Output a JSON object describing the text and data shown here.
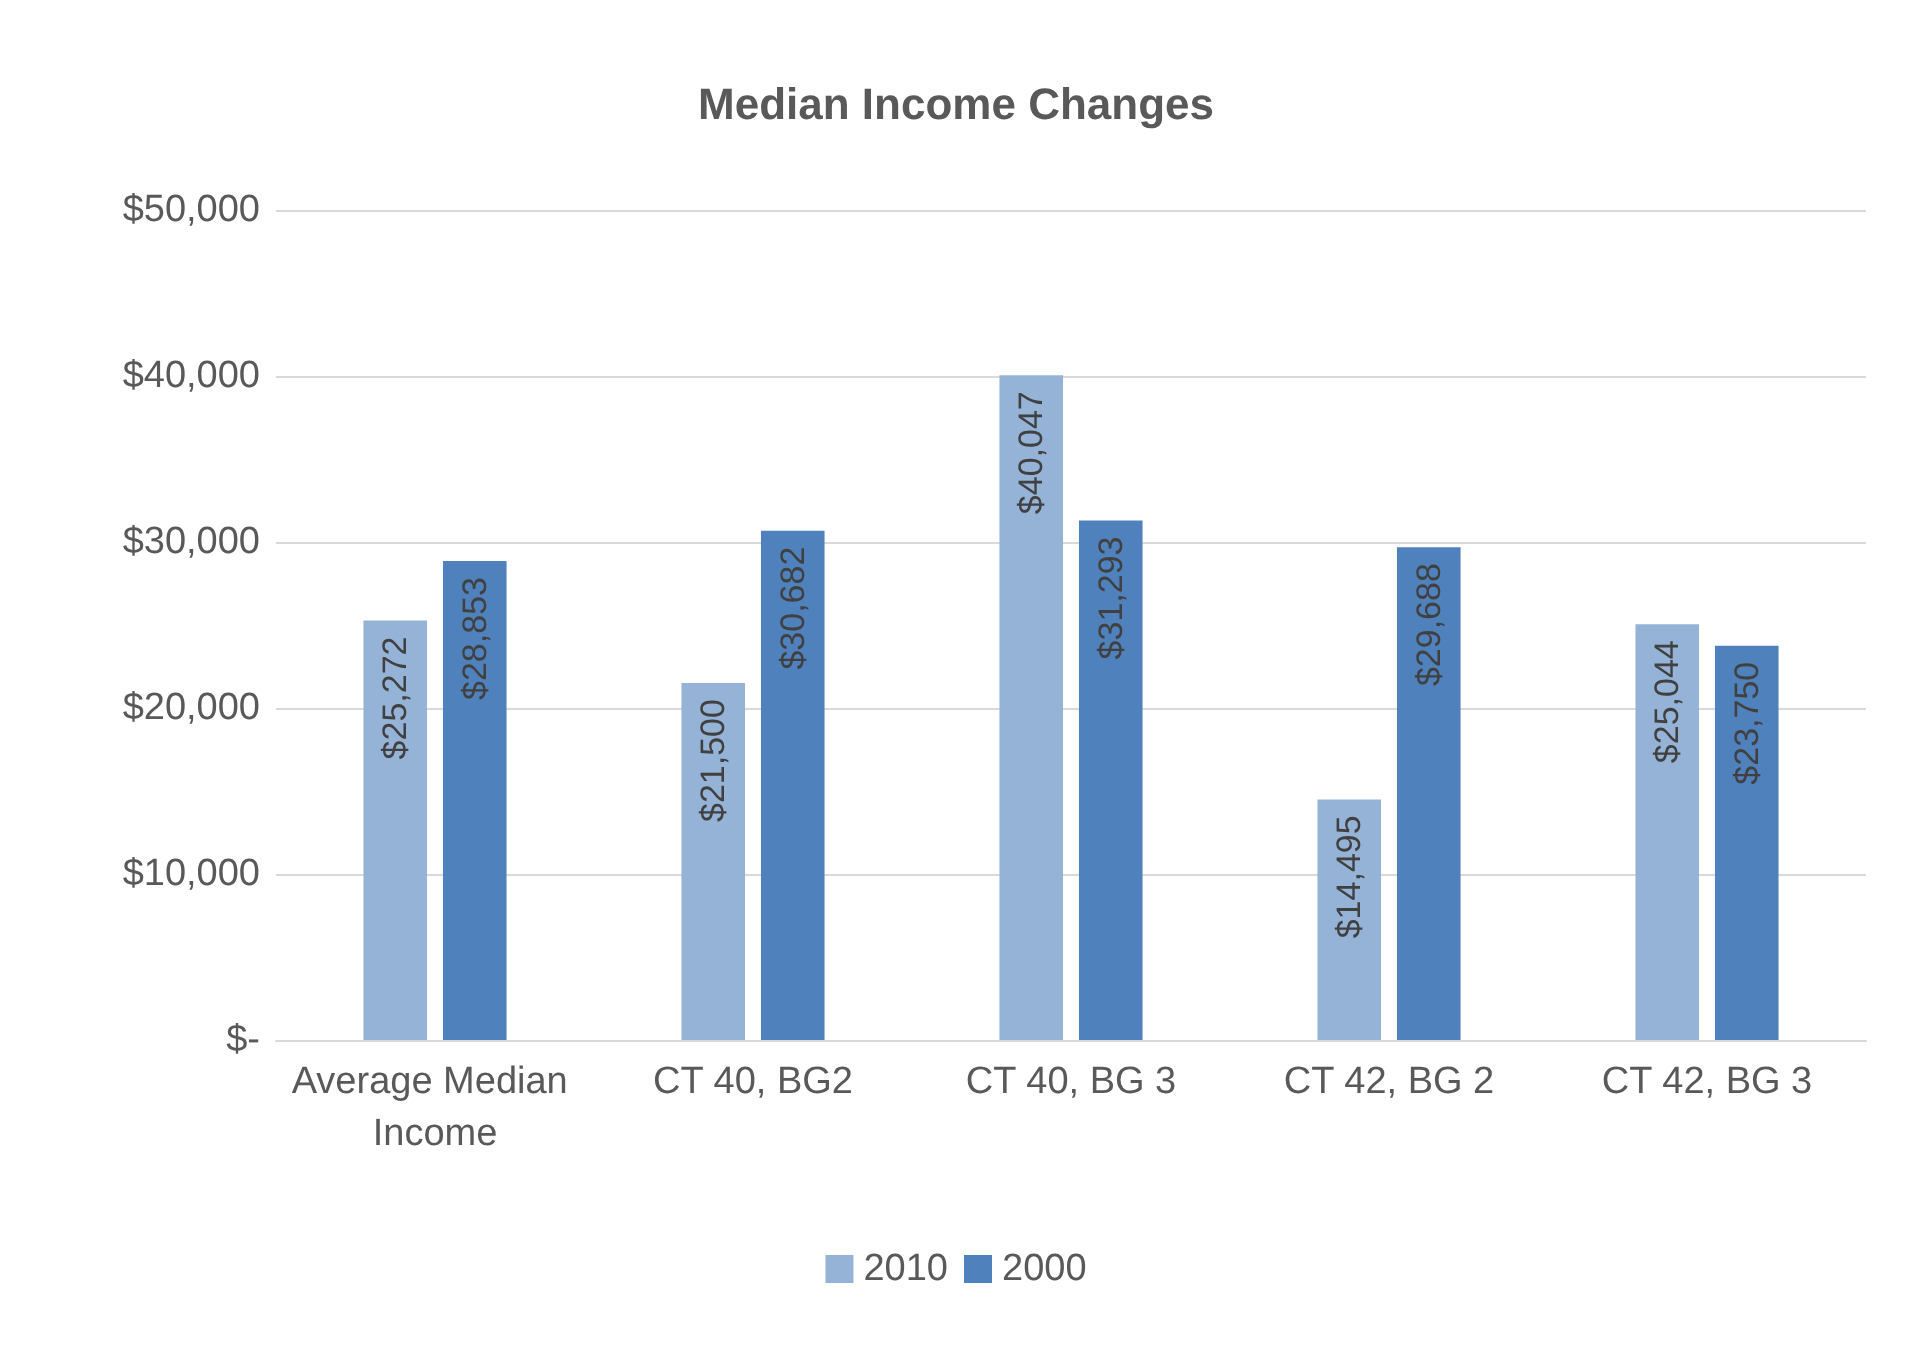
{
  "chart_data": {
    "type": "bar",
    "title": "Median Income Changes",
    "categories": [
      "Average Median Income",
      "CT 40, BG2",
      "CT 40, BG 3",
      "CT 42, BG 2",
      "CT 42, BG 3"
    ],
    "series": [
      {
        "name": "2010",
        "color": "#95b3d7",
        "values": [
          25272,
          21500,
          40047,
          14495,
          25044
        ],
        "value_labels": [
          "$25,272",
          "$21,500",
          "$40,047",
          "$14,495",
          "$25,044"
        ]
      },
      {
        "name": "2000",
        "color": "#4f81bd",
        "values": [
          28853,
          30682,
          31293,
          29688,
          23750
        ],
        "value_labels": [
          "$28,853",
          "$30,682",
          "$31,293",
          "$29,688",
          "$23,750"
        ]
      }
    ],
    "ylim": [
      0,
      50000
    ],
    "yticks": [
      {
        "value": 0,
        "label": "$-"
      },
      {
        "value": 10000,
        "label": "$10,000"
      },
      {
        "value": 20000,
        "label": "$20,000"
      },
      {
        "value": 30000,
        "label": "$30,000"
      },
      {
        "value": 40000,
        "label": "$40,000"
      },
      {
        "value": 50000,
        "label": "$50,000"
      }
    ],
    "grid": "y",
    "legend": "bottom"
  }
}
